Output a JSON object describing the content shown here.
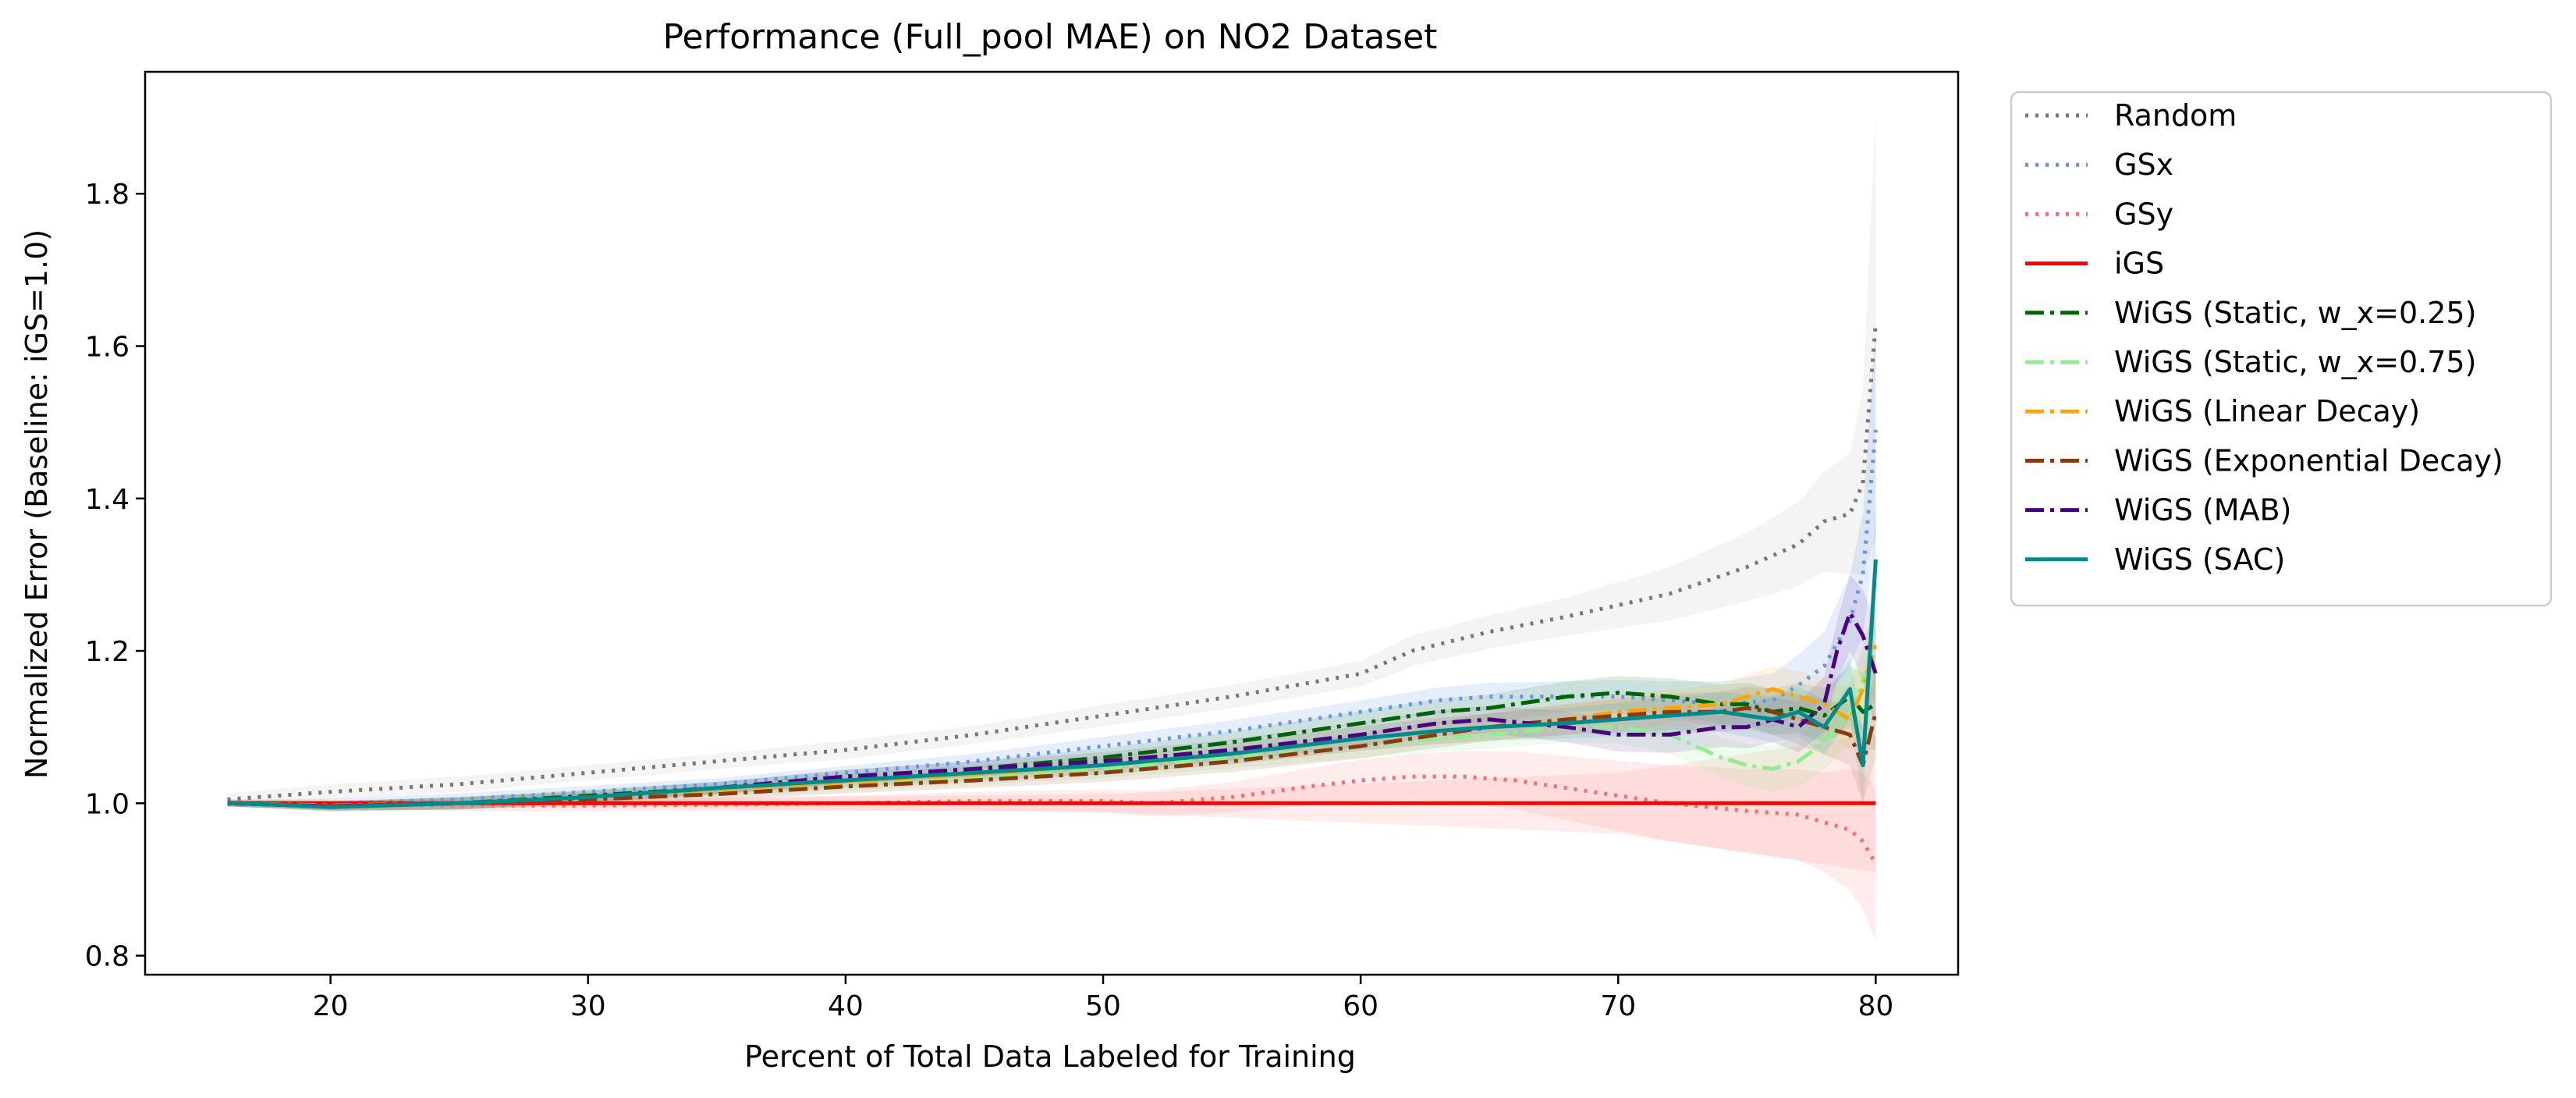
{
  "chart_data": {
    "type": "line",
    "title": "Performance (Full_pool MAE) on NO2 Dataset",
    "xlabel": "Percent of Total Data Labeled for Training",
    "ylabel": "Normalized Error (Baseline: iGS=1.0)",
    "xlim": [
      12.8,
      83.2
    ],
    "ylim": [
      0.775,
      1.96
    ],
    "xticks": [
      20,
      30,
      40,
      50,
      60,
      70,
      80
    ],
    "yticks": [
      0.8,
      1.0,
      1.2,
      1.4,
      1.6,
      1.8
    ],
    "xtick_labels": [
      "20",
      "30",
      "40",
      "50",
      "60",
      "70",
      "80"
    ],
    "ytick_labels": [
      "0.8",
      "1.0",
      "1.2",
      "1.4",
      "1.6",
      "1.8"
    ],
    "grid": false,
    "legend_position": "outside top-right",
    "series": [
      {
        "name": "Random",
        "color": "#777777",
        "style": "dotted",
        "band_color": "#bdbdbd",
        "x": [
          16,
          20,
          25,
          30,
          35,
          40,
          45,
          50,
          55,
          60,
          62,
          65,
          68,
          70,
          72,
          75,
          77,
          78,
          79,
          79.5,
          80
        ],
        "y": [
          1.005,
          1.015,
          1.025,
          1.04,
          1.055,
          1.07,
          1.09,
          1.115,
          1.14,
          1.17,
          1.2,
          1.225,
          1.245,
          1.26,
          1.275,
          1.31,
          1.34,
          1.37,
          1.38,
          1.42,
          1.63
        ],
        "band": [
          0.008,
          0.01,
          0.01,
          0.01,
          0.01,
          0.012,
          0.012,
          0.014,
          0.015,
          0.017,
          0.02,
          0.022,
          0.025,
          0.03,
          0.035,
          0.045,
          0.055,
          0.065,
          0.08,
          0.12,
          0.28
        ]
      },
      {
        "name": "GSx",
        "color": "#6495ED",
        "style": "dotted",
        "band_color": "#6495ED",
        "x": [
          16,
          20,
          25,
          30,
          35,
          40,
          45,
          50,
          55,
          60,
          63,
          65,
          68,
          70,
          72,
          74,
          76,
          77,
          78,
          79,
          79.5,
          80
        ],
        "y": [
          1.0,
          1.0,
          1.005,
          1.015,
          1.025,
          1.04,
          1.055,
          1.075,
          1.095,
          1.12,
          1.135,
          1.14,
          1.14,
          1.14,
          1.135,
          1.13,
          1.135,
          1.155,
          1.18,
          1.24,
          1.3,
          1.49
        ],
        "band": [
          0.005,
          0.006,
          0.008,
          0.008,
          0.008,
          0.009,
          0.01,
          0.012,
          0.014,
          0.015,
          0.017,
          0.018,
          0.02,
          0.022,
          0.025,
          0.03,
          0.035,
          0.04,
          0.045,
          0.06,
          0.08,
          0.14
        ]
      },
      {
        "name": "GSy",
        "color": "#FF6B6B",
        "style": "dotted",
        "band_color": "#ff8a8a",
        "x": [
          16,
          20,
          25,
          30,
          35,
          40,
          45,
          50,
          52,
          55,
          58,
          60,
          62,
          64,
          66,
          68,
          70,
          72,
          75,
          77,
          78,
          79,
          79.5,
          80
        ],
        "y": [
          1.0,
          0.998,
          0.997,
          0.997,
          0.998,
          1.0,
          1.003,
          1.003,
          1.0,
          1.008,
          1.022,
          1.03,
          1.035,
          1.035,
          1.03,
          1.02,
          1.01,
          1.0,
          0.99,
          0.985,
          0.975,
          0.965,
          0.95,
          0.92
        ],
        "band": [
          0.005,
          0.006,
          0.007,
          0.008,
          0.008,
          0.01,
          0.012,
          0.015,
          0.017,
          0.02,
          0.024,
          0.027,
          0.03,
          0.034,
          0.038,
          0.042,
          0.046,
          0.05,
          0.055,
          0.06,
          0.065,
          0.08,
          0.09,
          0.1
        ]
      },
      {
        "name": "iGS",
        "color": "#FF0000",
        "style": "solid",
        "band_color": "#ff8a8a",
        "x": [
          16,
          30,
          50,
          70,
          80
        ],
        "y": [
          1.0,
          1.0,
          1.0,
          1.0,
          1.0
        ],
        "band": [
          0.003,
          0.006,
          0.012,
          0.04,
          0.09
        ]
      },
      {
        "name": "WiGS (Static, w_x=0.25)",
        "color": "#006400",
        "style": "dashdot",
        "band_color": "#3a9a3a",
        "x": [
          16,
          20,
          25,
          30,
          35,
          40,
          45,
          50,
          55,
          60,
          63,
          65,
          68,
          70,
          72,
          74,
          75,
          76,
          77,
          78,
          79,
          79.5,
          80
        ],
        "y": [
          1.0,
          0.997,
          1.0,
          1.01,
          1.02,
          1.035,
          1.045,
          1.06,
          1.08,
          1.105,
          1.12,
          1.125,
          1.14,
          1.145,
          1.14,
          1.13,
          1.13,
          1.12,
          1.125,
          1.115,
          1.14,
          1.12,
          1.13
        ],
        "band": [
          0.004,
          0.006,
          0.008,
          0.008,
          0.008,
          0.009,
          0.01,
          0.012,
          0.014,
          0.016,
          0.017,
          0.018,
          0.02,
          0.022,
          0.024,
          0.026,
          0.028,
          0.03,
          0.033,
          0.036,
          0.04,
          0.05,
          0.06
        ]
      },
      {
        "name": "WiGS (Static, w_x=0.75)",
        "color": "#90EE90",
        "style": "dashdot",
        "band_color": "#90EE90",
        "x": [
          16,
          20,
          25,
          30,
          35,
          40,
          45,
          50,
          55,
          60,
          63,
          65,
          68,
          70,
          72,
          74,
          75,
          76,
          77,
          78,
          79,
          79.5,
          80
        ],
        "y": [
          1.0,
          0.997,
          1.0,
          1.005,
          1.015,
          1.025,
          1.035,
          1.045,
          1.06,
          1.075,
          1.085,
          1.09,
          1.1,
          1.1,
          1.09,
          1.06,
          1.05,
          1.045,
          1.055,
          1.08,
          1.12,
          1.16,
          1.2
        ],
        "band": [
          0.004,
          0.006,
          0.008,
          0.008,
          0.008,
          0.009,
          0.01,
          0.012,
          0.014,
          0.016,
          0.017,
          0.018,
          0.02,
          0.022,
          0.024,
          0.026,
          0.028,
          0.03,
          0.033,
          0.036,
          0.04,
          0.05,
          0.06
        ]
      },
      {
        "name": "WiGS (Linear Decay)",
        "color": "#FFA500",
        "style": "dashdot",
        "band_color": "#FFB84D",
        "x": [
          16,
          20,
          25,
          30,
          35,
          40,
          45,
          50,
          55,
          60,
          63,
          65,
          68,
          70,
          72,
          74,
          75,
          76,
          77,
          78,
          79,
          79.5,
          80
        ],
        "y": [
          1.0,
          0.997,
          1.0,
          1.008,
          1.018,
          1.028,
          1.038,
          1.05,
          1.065,
          1.085,
          1.095,
          1.1,
          1.11,
          1.12,
          1.125,
          1.13,
          1.14,
          1.15,
          1.14,
          1.13,
          1.11,
          1.15,
          1.21
        ],
        "band": [
          0.004,
          0.006,
          0.008,
          0.008,
          0.008,
          0.009,
          0.01,
          0.012,
          0.014,
          0.016,
          0.017,
          0.018,
          0.02,
          0.022,
          0.024,
          0.026,
          0.028,
          0.03,
          0.033,
          0.036,
          0.04,
          0.05,
          0.06
        ]
      },
      {
        "name": "WiGS (Exponential Decay)",
        "color": "#8B3A0F",
        "style": "dashdot",
        "band_color": "#b0704a",
        "x": [
          16,
          20,
          25,
          30,
          35,
          40,
          45,
          50,
          55,
          60,
          63,
          65,
          68,
          70,
          72,
          74,
          75,
          76,
          77,
          78,
          79,
          79.5,
          80
        ],
        "y": [
          1.0,
          0.996,
          1.0,
          1.005,
          1.012,
          1.022,
          1.03,
          1.04,
          1.055,
          1.075,
          1.09,
          1.1,
          1.11,
          1.115,
          1.12,
          1.12,
          1.125,
          1.12,
          1.11,
          1.1,
          1.09,
          1.05,
          1.12
        ],
        "band": [
          0.004,
          0.006,
          0.008,
          0.008,
          0.008,
          0.009,
          0.01,
          0.012,
          0.014,
          0.016,
          0.017,
          0.018,
          0.02,
          0.022,
          0.024,
          0.026,
          0.028,
          0.03,
          0.033,
          0.036,
          0.04,
          0.05,
          0.06
        ]
      },
      {
        "name": "WiGS (MAB)",
        "color": "#4B0082",
        "style": "dashdot",
        "band_color": "#7a4fb0",
        "x": [
          16,
          20,
          25,
          30,
          35,
          40,
          45,
          50,
          55,
          60,
          63,
          65,
          68,
          70,
          72,
          74,
          75,
          76,
          77,
          78,
          78.5,
          79,
          79.5,
          80
        ],
        "y": [
          1.0,
          0.996,
          1.0,
          1.008,
          1.02,
          1.035,
          1.045,
          1.055,
          1.07,
          1.09,
          1.105,
          1.11,
          1.1,
          1.09,
          1.09,
          1.1,
          1.1,
          1.11,
          1.1,
          1.13,
          1.2,
          1.25,
          1.22,
          1.17
        ],
        "band": [
          0.004,
          0.006,
          0.008,
          0.008,
          0.008,
          0.009,
          0.01,
          0.012,
          0.014,
          0.016,
          0.017,
          0.018,
          0.02,
          0.022,
          0.024,
          0.026,
          0.028,
          0.03,
          0.033,
          0.036,
          0.04,
          0.05,
          0.06,
          0.07
        ]
      },
      {
        "name": "WiGS (SAC)",
        "color": "#008B8B",
        "style": "solid",
        "band_color": "#40a8a8",
        "x": [
          16,
          18,
          20,
          25,
          30,
          35,
          40,
          45,
          50,
          55,
          60,
          63,
          65,
          68,
          70,
          72,
          74,
          75,
          76,
          77,
          78,
          79,
          79.5,
          80
        ],
        "y": [
          1.0,
          0.998,
          0.995,
          1.0,
          1.008,
          1.02,
          1.03,
          1.04,
          1.05,
          1.065,
          1.085,
          1.095,
          1.1,
          1.105,
          1.11,
          1.115,
          1.12,
          1.115,
          1.11,
          1.12,
          1.1,
          1.15,
          1.05,
          1.32
        ],
        "band": [
          0.004,
          0.005,
          0.006,
          0.008,
          0.008,
          0.008,
          0.009,
          0.01,
          0.012,
          0.014,
          0.016,
          0.017,
          0.018,
          0.02,
          0.022,
          0.024,
          0.026,
          0.028,
          0.03,
          0.033,
          0.036,
          0.04,
          0.05,
          0.07
        ]
      }
    ]
  }
}
